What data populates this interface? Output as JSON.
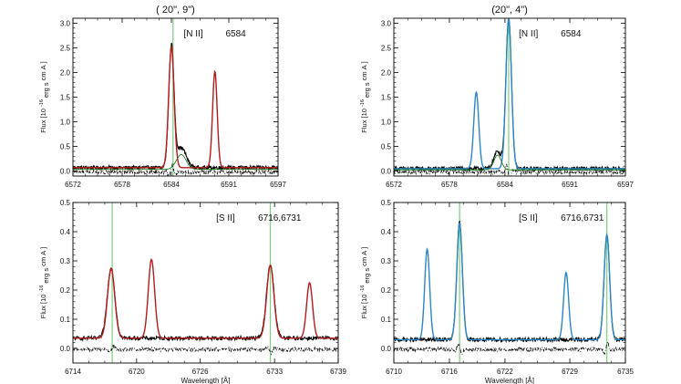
{
  "colors": {
    "observed": "#000000",
    "residual": "#000000",
    "fit_red": "#b31b1b",
    "fit_blue": "#2a86c6",
    "fit_green": "#1f7a1f",
    "marker": "#7ccf7c",
    "axis": "#000000"
  },
  "chart_data": [
    {
      "id": "top-left",
      "type": "line",
      "title": "(  20\",  9\")",
      "annotation_line": "[N II]",
      "annotation_wave": "6584",
      "ylabel_main": "Flux [10",
      "ylabel_exp": "-16",
      "ylabel_units": "erg s",
      "ylabel_cm": "cm",
      "ylabel_A": "A",
      "ylabel_close": "]",
      "xlabel": "",
      "xlim": [
        6572,
        6597
      ],
      "ylim": [
        -0.1,
        3.1
      ],
      "xticks": [
        6572,
        6578,
        6584,
        6591,
        6597
      ],
      "xtick_labels": [
        "6572",
        "6578",
        "6584",
        "6591",
        "6597"
      ],
      "yticks": [
        0.0,
        0.5,
        1.0,
        1.5,
        2.0,
        2.5,
        3.0
      ],
      "ytick_labels": [
        "0.0",
        "0.5",
        "1.0",
        "1.5",
        "2.0",
        "2.5",
        "3.0"
      ],
      "baseline": 0.07,
      "markers": [
        6584.2
      ],
      "observed_components": [
        {
          "center": 6584.0,
          "amp": 2.45,
          "sigma": 0.32
        },
        {
          "center": 6585.2,
          "amp": 0.4,
          "sigma": 0.6
        }
      ],
      "series": [
        {
          "name": "fit",
          "color_key": "fit_red",
          "components": [
            {
              "center": 6584.0,
              "amp": 2.45,
              "sigma": 0.33
            },
            {
              "center": 6589.3,
              "amp": 1.95,
              "sigma": 0.28
            }
          ]
        },
        {
          "name": "fit-wing",
          "color_key": "fit_green",
          "components": [
            {
              "center": 6585.2,
              "amp": 0.3,
              "sigma": 0.6
            }
          ]
        }
      ]
    },
    {
      "id": "top-right",
      "type": "line",
      "title": "(20\",   4\")",
      "annotation_line": "[N II]",
      "annotation_wave": "6584",
      "ylabel_main": "Flux [10",
      "ylabel_exp": "-16",
      "ylabel_units": "erg s",
      "ylabel_cm": "cm",
      "ylabel_A": "A",
      "ylabel_close": "]",
      "xlabel": "",
      "xlim": [
        6572,
        6597
      ],
      "ylim": [
        -0.1,
        3.1
      ],
      "xticks": [
        6572,
        6578,
        6584,
        6591,
        6597
      ],
      "xtick_labels": [
        "6572",
        "6578",
        "6584",
        "6591",
        "6597"
      ],
      "yticks": [
        0.0,
        0.5,
        1.0,
        1.5,
        2.0,
        2.5,
        3.0
      ],
      "ytick_labels": [
        "0.0",
        "0.5",
        "1.0",
        "1.5",
        "2.0",
        "2.5",
        "3.0"
      ],
      "baseline": 0.05,
      "markers": [
        6584.4
      ],
      "observed_components": [
        {
          "center": 6584.4,
          "amp": 3.05,
          "sigma": 0.3
        },
        {
          "center": 6583.2,
          "amp": 0.35,
          "sigma": 0.4
        }
      ],
      "series": [
        {
          "name": "fit",
          "color_key": "fit_blue",
          "components": [
            {
              "center": 6580.9,
              "amp": 1.55,
              "sigma": 0.27
            },
            {
              "center": 6584.4,
              "amp": 3.05,
              "sigma": 0.3
            }
          ]
        },
        {
          "name": "fit-wing",
          "color_key": "fit_green",
          "components": [
            {
              "center": 6583.2,
              "amp": 0.3,
              "sigma": 0.4
            }
          ]
        }
      ]
    },
    {
      "id": "bottom-left",
      "type": "line",
      "title": "",
      "annotation_line": "[S II]",
      "annotation_wave": "6716,6731",
      "ylabel_main": "Flux [10",
      "ylabel_exp": "-16",
      "ylabel_units": "erg s",
      "ylabel_cm": "cm",
      "ylabel_A": "A",
      "ylabel_close": "]",
      "xlabel": "Wavelength [Å]",
      "xlim": [
        6714,
        6739
      ],
      "ylim": [
        -0.05,
        0.5
      ],
      "xticks": [
        6714,
        6720,
        6726,
        6733,
        6739
      ],
      "xtick_labels": [
        "6714",
        "6720",
        "6726",
        "6733",
        "6739"
      ],
      "yticks": [
        0.0,
        0.1,
        0.2,
        0.3,
        0.4,
        0.5
      ],
      "ytick_labels": [
        "0.0",
        "0.1",
        "0.2",
        "0.3",
        "0.4",
        "0.5"
      ],
      "baseline": 0.035,
      "markers": [
        6717.7,
        6732.6
      ],
      "observed_components": [
        {
          "center": 6717.6,
          "amp": 0.24,
          "sigma": 0.36
        },
        {
          "center": 6732.6,
          "amp": 0.25,
          "sigma": 0.36
        }
      ],
      "series": [
        {
          "name": "fit",
          "color_key": "fit_red",
          "components": [
            {
              "center": 6717.6,
              "amp": 0.24,
              "sigma": 0.34
            },
            {
              "center": 6721.4,
              "amp": 0.27,
              "sigma": 0.3
            },
            {
              "center": 6732.6,
              "amp": 0.25,
              "sigma": 0.34
            },
            {
              "center": 6736.3,
              "amp": 0.19,
              "sigma": 0.28
            }
          ]
        }
      ]
    },
    {
      "id": "bottom-right",
      "type": "line",
      "title": "",
      "annotation_line": "[S II]",
      "annotation_wave": "6716,6731",
      "ylabel_main": "Flux [10",
      "ylabel_exp": "-16",
      "ylabel_units": "erg s",
      "ylabel_cm": "cm",
      "ylabel_A": "A",
      "ylabel_close": "]",
      "xlabel": "Wavelength [Å]",
      "xlim": [
        6710,
        6735
      ],
      "ylim": [
        -0.05,
        0.5
      ],
      "xticks": [
        6710,
        6716,
        6722,
        6729,
        6735
      ],
      "xtick_labels": [
        "6710",
        "6716",
        "6722",
        "6729",
        "6735"
      ],
      "yticks": [
        0.0,
        0.1,
        0.2,
        0.3,
        0.4,
        0.5
      ],
      "ytick_labels": [
        "0.0",
        "0.1",
        "0.2",
        "0.3",
        "0.4",
        "0.5"
      ],
      "baseline": 0.03,
      "markers": [
        6717.1,
        6733.0
      ],
      "observed_components": [
        {
          "center": 6717.1,
          "amp": 0.4,
          "sigma": 0.3
        },
        {
          "center": 6733.0,
          "amp": 0.36,
          "sigma": 0.3
        }
      ],
      "series": [
        {
          "name": "fit",
          "color_key": "fit_blue",
          "components": [
            {
              "center": 6713.6,
              "amp": 0.31,
              "sigma": 0.27
            },
            {
              "center": 6717.1,
              "amp": 0.4,
              "sigma": 0.3
            },
            {
              "center": 6728.6,
              "amp": 0.23,
              "sigma": 0.27
            },
            {
              "center": 6733.0,
              "amp": 0.36,
              "sigma": 0.3
            }
          ]
        }
      ]
    }
  ]
}
